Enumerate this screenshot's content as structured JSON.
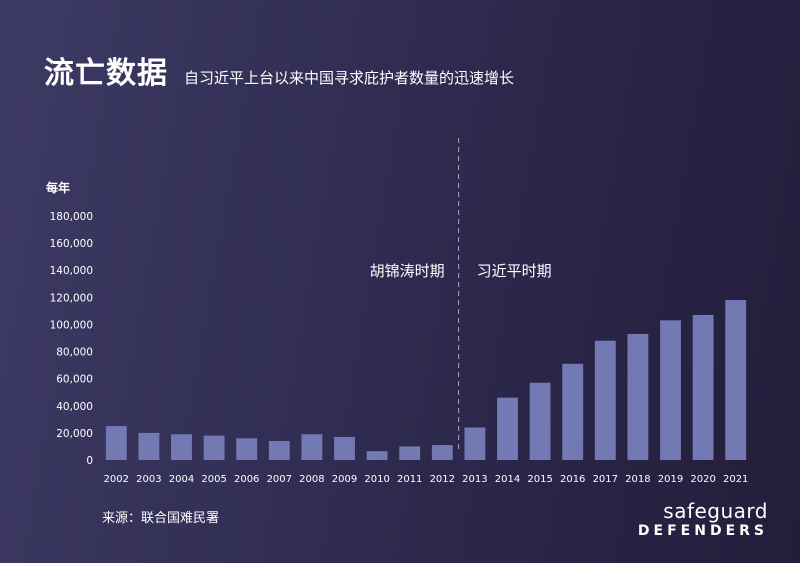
{
  "header": {
    "title": "流亡数据",
    "subtitle": "自习近平上台以来中国寻求庇护者数量的迅速增长"
  },
  "source": "来源：联合国难民署",
  "brand": {
    "line1": "safeguard",
    "line2": "DEFENDERS"
  },
  "colors": {
    "bar": "#7379b3",
    "background": "#302c52",
    "text": "#ffffff",
    "divider": "#a9a6c4"
  },
  "chart_data": {
    "type": "bar",
    "ylabel": "每年",
    "ylim": [
      0,
      180000
    ],
    "yticks": [
      0,
      20000,
      40000,
      60000,
      80000,
      100000,
      120000,
      140000,
      160000,
      180000
    ],
    "ytick_labels": [
      "0",
      "20,000",
      "40,000",
      "60,000",
      "80,000",
      "100,000",
      "120,000",
      "140,000",
      "160,000",
      "180,000"
    ],
    "categories": [
      "2002",
      "2003",
      "2004",
      "2005",
      "2006",
      "2007",
      "2008",
      "2009",
      "2010",
      "2011",
      "2012",
      "2013",
      "2014",
      "2015",
      "2016",
      "2017",
      "2018",
      "2019",
      "2020",
      "2021"
    ],
    "values": [
      25000,
      20000,
      19000,
      18000,
      16000,
      14000,
      19000,
      17000,
      6500,
      10000,
      11000,
      24000,
      46000,
      57000,
      71000,
      88000,
      93000,
      103000,
      107000,
      118000
    ],
    "grid": false,
    "annotations": [
      {
        "text": "胡锦涛时期",
        "side": "left-of-divider"
      },
      {
        "text": "习近平时期",
        "side": "right-of-divider"
      }
    ],
    "divider_between": [
      "2012",
      "2013"
    ]
  }
}
